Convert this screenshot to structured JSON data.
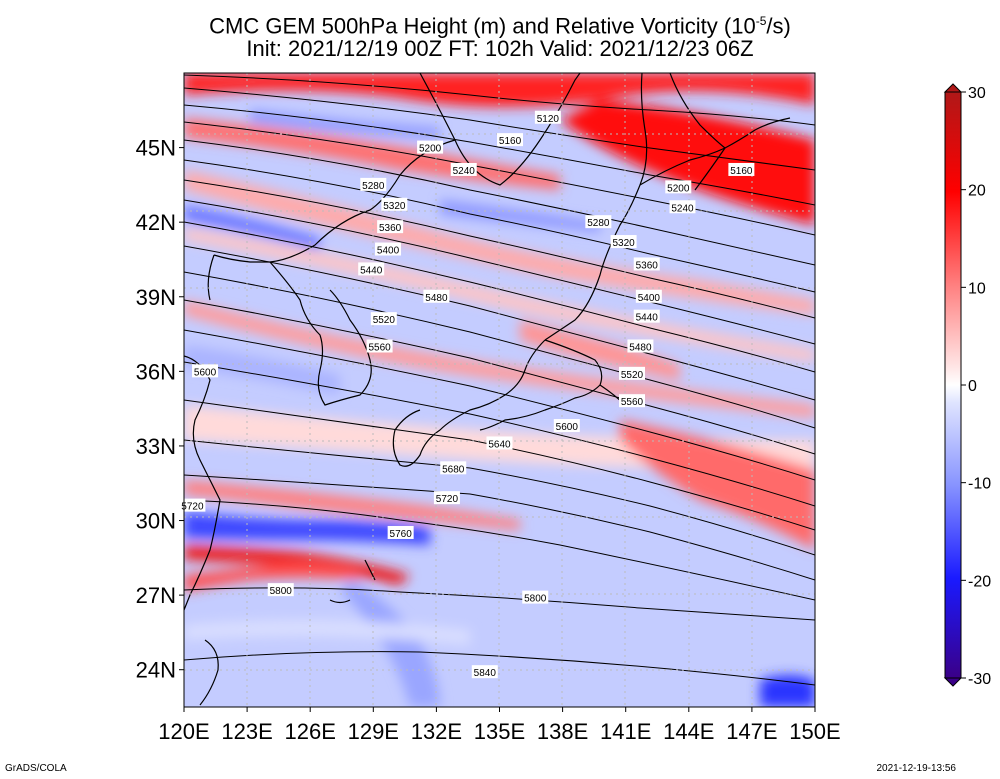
{
  "title": {
    "line1_pre": "CMC GEM 500hPa Height (m) and Relative Vorticity (10",
    "line1_exp": "-5",
    "line1_post": "/s)",
    "line2": "Init: 2021/12/19 00Z  FT: 102h  Valid: 2021/12/23 06Z"
  },
  "map": {
    "lon_labels": [
      "120E",
      "123E",
      "126E",
      "129E",
      "132E",
      "135E",
      "138E",
      "141E",
      "144E",
      "147E",
      "150E"
    ],
    "lat_labels": [
      "45N",
      "42N",
      "39N",
      "36N",
      "33N",
      "30N",
      "27N",
      "24N"
    ],
    "lon_range": [
      120,
      150
    ],
    "lat_range": [
      22.5,
      48
    ]
  },
  "contours": {
    "interval_m": 40,
    "labels": [
      {
        "text": "5120",
        "lon": 137.3,
        "lat": 46.2
      },
      {
        "text": "5160",
        "lon": 135.5,
        "lat": 45.3
      },
      {
        "text": "5200",
        "lon": 131.7,
        "lat": 45.0
      },
      {
        "text": "5240",
        "lon": 133.3,
        "lat": 44.1
      },
      {
        "text": "5280",
        "lon": 129.0,
        "lat": 43.5
      },
      {
        "text": "5320",
        "lon": 130.0,
        "lat": 42.7
      },
      {
        "text": "5360",
        "lon": 129.8,
        "lat": 41.8
      },
      {
        "text": "5400",
        "lon": 129.7,
        "lat": 40.9
      },
      {
        "text": "5440",
        "lon": 128.9,
        "lat": 40.1
      },
      {
        "text": "5480",
        "lon": 132.0,
        "lat": 39.0
      },
      {
        "text": "5520",
        "lon": 129.5,
        "lat": 38.1
      },
      {
        "text": "5560",
        "lon": 129.3,
        "lat": 37.0
      },
      {
        "text": "5600",
        "lon": 121.0,
        "lat": 36.0
      },
      {
        "text": "5640",
        "lon": 135.0,
        "lat": 33.1
      },
      {
        "text": "5680",
        "lon": 132.8,
        "lat": 32.1
      },
      {
        "text": "5720",
        "lon": 132.5,
        "lat": 30.9
      },
      {
        "text": "5720",
        "lon": 120.4,
        "lat": 30.6
      },
      {
        "text": "5760",
        "lon": 130.3,
        "lat": 29.5
      },
      {
        "text": "5800",
        "lon": 124.6,
        "lat": 27.2
      },
      {
        "text": "5800",
        "lon": 136.7,
        "lat": 26.9
      },
      {
        "text": "5840",
        "lon": 134.3,
        "lat": 23.9
      },
      {
        "text": "5160",
        "lon": 146.5,
        "lat": 44.1
      },
      {
        "text": "5200",
        "lon": 143.5,
        "lat": 43.4
      },
      {
        "text": "5240",
        "lon": 143.7,
        "lat": 42.6
      },
      {
        "text": "5280",
        "lon": 139.7,
        "lat": 42.0
      },
      {
        "text": "5320",
        "lon": 140.9,
        "lat": 41.2
      },
      {
        "text": "5360",
        "lon": 142.0,
        "lat": 40.3
      },
      {
        "text": "5400",
        "lon": 142.1,
        "lat": 39.0
      },
      {
        "text": "5440",
        "lon": 142.0,
        "lat": 38.2
      },
      {
        "text": "5480",
        "lon": 141.7,
        "lat": 37.0
      },
      {
        "text": "5520",
        "lon": 141.3,
        "lat": 35.9
      },
      {
        "text": "5560",
        "lon": 141.3,
        "lat": 34.8
      },
      {
        "text": "5600",
        "lon": 138.2,
        "lat": 33.8
      }
    ]
  },
  "colorbar": {
    "tick_labels": [
      "30",
      "20",
      "10",
      "0",
      "-10",
      "-20",
      "-30"
    ],
    "tick_values": [
      30,
      20,
      10,
      0,
      -10,
      -20,
      -30
    ],
    "colors": {
      "max": "#b01818",
      "pos": "#ff0000",
      "light_pos": "#ffd6d6",
      "zero": "#ffffff",
      "light_neg": "#d6dcff",
      "neg": "#1a1aff",
      "min": "#3a0088"
    }
  },
  "footer": {
    "credit": "GrADS/COLA",
    "timestamp": "2021-12-19-13:56"
  }
}
